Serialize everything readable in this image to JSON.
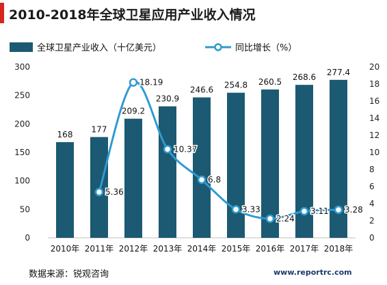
{
  "title": "2010-2018年全球卫星应用产业收入情况",
  "source": "数据来源：锐观咨询",
  "watermark": "www.reportrc.com",
  "colors": {
    "accent": "#d7261e",
    "bar": "#1b5a72",
    "line": "#2f9ad3"
  },
  "chart_data": {
    "type": "bar+line",
    "categories": [
      "2010年",
      "2011年",
      "2012年",
      "2013年",
      "2014年",
      "2015年",
      "2016年",
      "2017年",
      "2018年"
    ],
    "series": [
      {
        "name": "全球卫星产业收入（十亿美元）",
        "type": "bar",
        "axis": "left",
        "values": [
          168,
          177,
          209.2,
          230.9,
          246.6,
          254.8,
          260.5,
          268.6,
          277.4
        ],
        "labels": [
          "168",
          "177",
          "209.2",
          "230.9",
          "246.6",
          "254.8",
          "260.5",
          "268.6",
          "277.4"
        ]
      },
      {
        "name": "同比增长（%）",
        "type": "line",
        "axis": "right",
        "values": [
          null,
          5.36,
          18.19,
          10.37,
          6.8,
          3.33,
          2.24,
          3.11,
          3.28
        ],
        "labels": [
          "",
          "5.36",
          "18.19",
          "10.37",
          "6.8",
          "3.33",
          "2.24",
          "3.11",
          "3.28"
        ]
      }
    ],
    "ylim_left": [
      0,
      300
    ],
    "yticks_left": [
      "0",
      "50",
      "100",
      "150",
      "200",
      "250",
      "300"
    ],
    "ylim_right": [
      0,
      20
    ],
    "yticks_right": [
      "0",
      "2",
      "4",
      "6",
      "8",
      "10",
      "12",
      "14",
      "16",
      "18",
      "20"
    ],
    "legend_position": "top",
    "grid": false
  }
}
